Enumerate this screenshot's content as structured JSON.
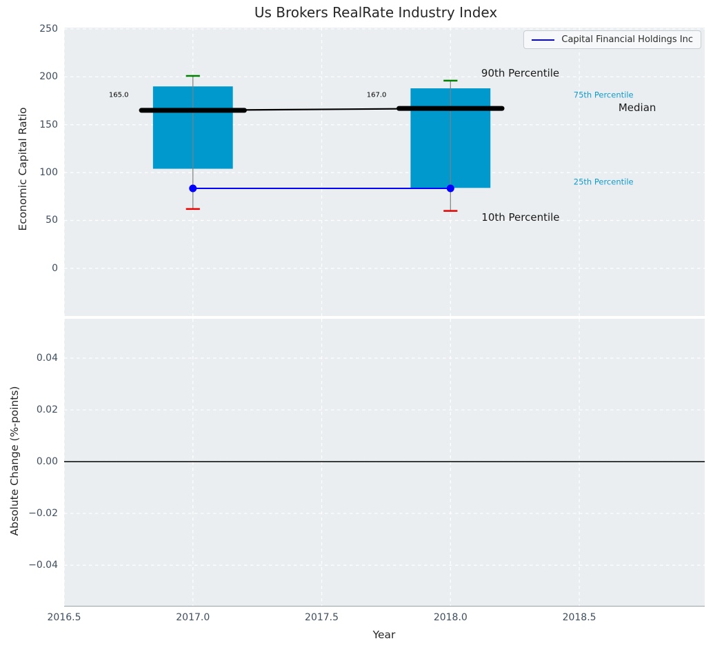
{
  "figure": {
    "title": "Us Brokers RealRate Industry Index",
    "background": "#ffffff",
    "axes_background": "#ebeef0",
    "grid_color": "#ffffff",
    "tick_color": "#3d4e5e",
    "text_color": "#262626"
  },
  "legend": {
    "label": "Capital Financial Holdings Inc",
    "line_color": "#0000ff"
  },
  "chart_data": [
    {
      "type": "box-timeseries",
      "title": "Us Brokers RealRate Industry Index",
      "ylabel": "Economic Capital Ratio",
      "xlim": [
        2016.5,
        2018.987
      ],
      "ylim": [
        -49.8,
        251.4
      ],
      "ytick_values": [
        0,
        50,
        100,
        150,
        200,
        250
      ],
      "ytick_labels": [
        "0",
        "50",
        "100",
        "150",
        "200",
        "250"
      ],
      "xtick_values": [
        2016.5,
        2017.0,
        2017.5,
        2018.0,
        2018.5
      ],
      "xtick_labels": [
        "2016.5",
        "2017.0",
        "2017.5",
        "2018.0",
        "2018.5"
      ],
      "grid": true,
      "legend_position": "upper right",
      "x": [
        2017,
        2018
      ],
      "series": {
        "p90": [
          201,
          196
        ],
        "p75": [
          190,
          188
        ],
        "median": [
          165,
          167
        ],
        "p25": [
          104,
          84
        ],
        "p10": [
          62,
          60
        ],
        "company": [
          83.5,
          83.5
        ]
      },
      "company_name": "Capital Financial Holdings Inc",
      "median_value_labels": [
        "165.0",
        "167.0"
      ],
      "colors": {
        "box": "#0099ce",
        "whisker": "#808080",
        "p90_cap": "#008000",
        "p10_cap": "#e60000",
        "median": "#000000",
        "company": "#0000ff"
      },
      "geometry": {
        "box_width": 0.31,
        "median_width": 0.4,
        "cap_width": 0.054
      },
      "annotations": [
        {
          "text": "165.0",
          "x": 2016.712,
          "y": 180.5,
          "color": "#000000",
          "size": 10
        },
        {
          "text": "167.0",
          "x": 2017.713,
          "y": 181,
          "color": "#000000",
          "size": 10
        },
        {
          "text": "90th Percentile",
          "x": 2018.271,
          "y": 204,
          "color": "#1a1a1a",
          "size": 15
        },
        {
          "text": "10th Percentile",
          "x": 2018.272,
          "y": 53,
          "color": "#1a1a1a",
          "size": 15
        },
        {
          "text": "75th Percentile",
          "x": 2018.594,
          "y": 181,
          "color": "#0f9bce",
          "size": 11.5
        },
        {
          "text": "Median",
          "x": 2018.725,
          "y": 168,
          "color": "#1a1a1a",
          "size": 15
        },
        {
          "text": "25th Percentile",
          "x": 2018.594,
          "y": 90,
          "color": "#0f9bce",
          "size": 11.5
        }
      ]
    },
    {
      "type": "line",
      "ylabel": "Absolute Change (%-points)",
      "xlabel": "Year",
      "xlim": [
        2016.5,
        2018.987
      ],
      "ylim": [
        -0.0557,
        0.0552
      ],
      "ytick_values": [
        0.04,
        0.02,
        0,
        -0.02,
        -0.04
      ],
      "ytick_labels": [
        "0.04",
        "0.02",
        "0.00",
        "−0.02",
        "−0.04"
      ],
      "xtick_values": [
        2016.5,
        2017.0,
        2017.5,
        2018.0,
        2018.5
      ],
      "xtick_labels": [
        "2016.5",
        "2017.0",
        "2017.5",
        "2018.0",
        "2018.5"
      ],
      "grid": true,
      "zero_line": {
        "y": 0,
        "color": "#000000"
      }
    }
  ]
}
